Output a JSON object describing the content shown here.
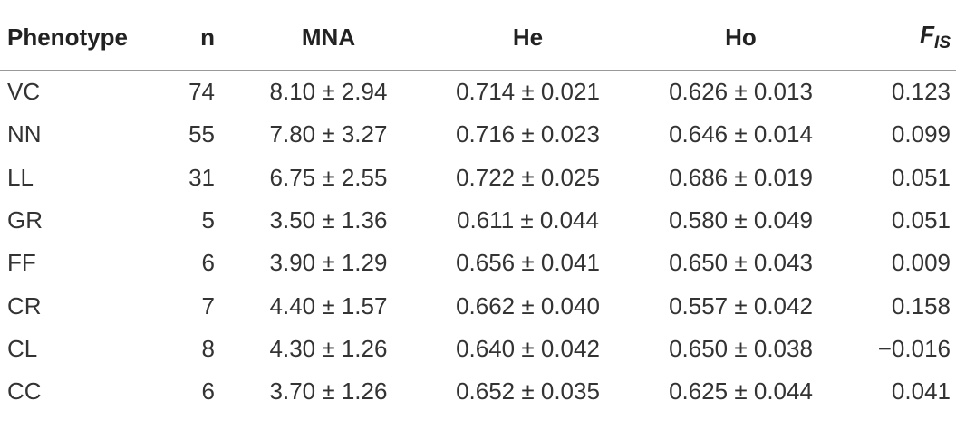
{
  "table": {
    "headers": [
      "Phenotype",
      "n",
      "MNA",
      "He",
      "Ho",
      {
        "base": "F",
        "sub": "IS"
      }
    ],
    "rows": [
      [
        "VC",
        "74",
        "8.10 ± 2.94",
        "0.714 ± 0.021",
        "0.626 ± 0.013",
        "0.123"
      ],
      [
        "NN",
        "55",
        "7.80 ± 3.27",
        "0.716 ± 0.023",
        "0.646 ± 0.014",
        "0.099"
      ],
      [
        "LL",
        "31",
        "6.75 ± 2.55",
        "0.722 ± 0.025",
        "0.686 ± 0.019",
        "0.051"
      ],
      [
        "GR",
        "5",
        "3.50 ± 1.36",
        "0.611 ± 0.044",
        "0.580 ± 0.049",
        "0.051"
      ],
      [
        "FF",
        "6",
        "3.90 ± 1.29",
        "0.656 ± 0.041",
        "0.650 ± 0.043",
        "0.009"
      ],
      [
        "CR",
        "7",
        "4.40 ± 1.57",
        "0.662 ± 0.040",
        "0.557 ± 0.042",
        "0.158"
      ],
      [
        "CL",
        "8",
        "4.30 ± 1.26",
        "0.640 ± 0.042",
        "0.650 ± 0.038",
        "−0.016"
      ],
      [
        "CC",
        "6",
        "3.70 ± 1.26",
        "0.652 ± 0.035",
        "0.625 ± 0.044",
        "0.041"
      ]
    ]
  }
}
